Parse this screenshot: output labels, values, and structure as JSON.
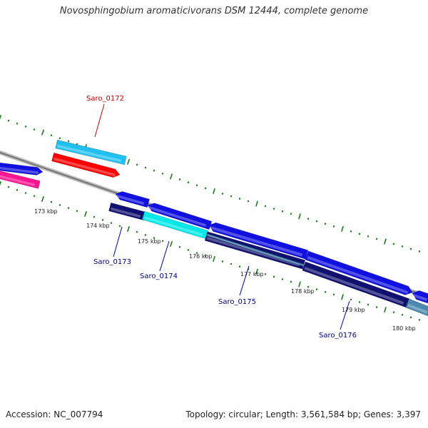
{
  "title": "Novosphingobium aromaticivorans DSM 12444, complete genome",
  "footer": {
    "accession": "Accession: NC_007794",
    "summary": "Topology: circular; Length: 3,561,584 bp; Genes: 3,397"
  },
  "colors": {
    "backbone": "#888888",
    "tick": "#1a7a1a",
    "forward_label": "#cc0000",
    "reverse_label": "#00008b",
    "gene_blue": "#1010e0",
    "gene_navy": "#101070",
    "gene_cyan": "#00e8e8",
    "gene_steel": "#4a88b0",
    "gene_light_blue": "#20c0f0",
    "gene_red": "#ff0000",
    "gene_pink": "#ff1493"
  },
  "ruler": {
    "labels": [
      "173 kbp",
      "174 kbp",
      "175 kbp",
      "176 kbp",
      "177 kbp",
      "178 kbp",
      "179 kbp",
      "180 kbp"
    ]
  },
  "gene_labels": [
    {
      "text": "Saro_0172",
      "strand": "forward"
    },
    {
      "text": "Saro_0173",
      "strand": "reverse"
    },
    {
      "text": "Saro_0174",
      "strand": "reverse"
    },
    {
      "text": "Saro_0175",
      "strand": "reverse"
    },
    {
      "text": "Saro_0176",
      "strand": "reverse"
    }
  ]
}
